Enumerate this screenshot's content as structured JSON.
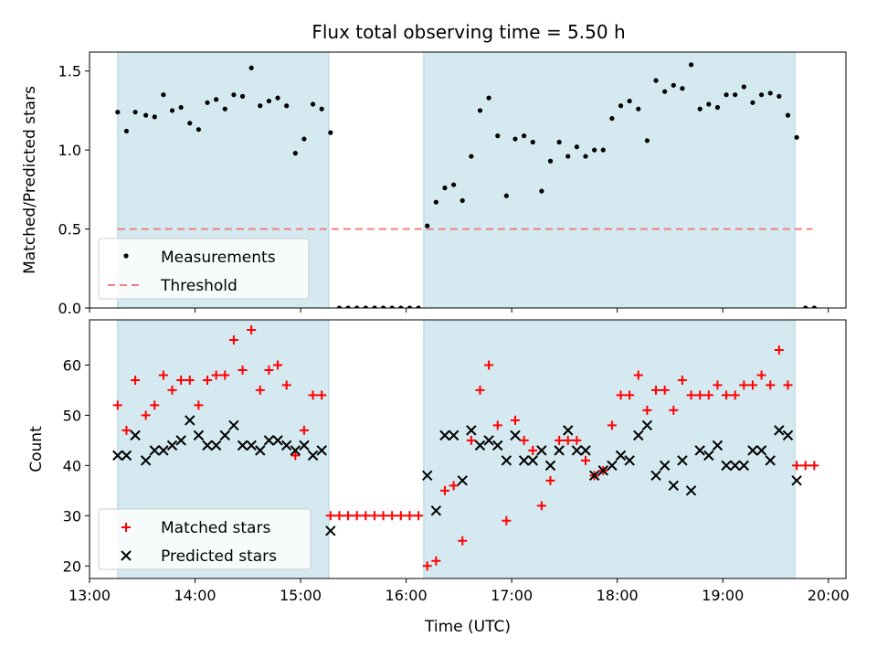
{
  "figure": {
    "title": "Flux total observing time = 5.50 h"
  },
  "chart_data": [
    {
      "type": "scatter",
      "ylabel": "Matched/Predicted stars",
      "xlabel": "",
      "xlim": [
        "13:00",
        "20:10"
      ],
      "ylim": [
        0,
        1.62
      ],
      "yticks": [
        0.0,
        0.5,
        1.0,
        1.5
      ],
      "ytick_labels": [
        "0.0",
        "0.5",
        "1.0",
        "1.5"
      ],
      "shaded_regions": [
        {
          "start": "13:16",
          "end": "15:16",
          "color": "#d4eaf0"
        },
        {
          "start": "16:10",
          "end": "19:41",
          "color": "#d4eaf0"
        }
      ],
      "threshold": {
        "value": 0.5,
        "start": "13:16",
        "end": "19:51",
        "color": "#f08080"
      },
      "legend": {
        "position": "lower-left",
        "entries": [
          {
            "label": "Measurements",
            "marker": "dot",
            "color": "#000000"
          },
          {
            "label": "Threshold",
            "marker": "dashed-line",
            "color": "#f08080"
          }
        ]
      },
      "series": [
        {
          "name": "Measurements",
          "color": "#000000",
          "points": [
            [
              "13:16",
              1.24
            ],
            [
              "13:21",
              1.12
            ],
            [
              "13:26",
              1.24
            ],
            [
              "13:32",
              1.22
            ],
            [
              "13:37",
              1.21
            ],
            [
              "13:42",
              1.35
            ],
            [
              "13:47",
              1.25
            ],
            [
              "13:52",
              1.27
            ],
            [
              "13:57",
              1.17
            ],
            [
              "14:02",
              1.13
            ],
            [
              "14:07",
              1.3
            ],
            [
              "14:12",
              1.32
            ],
            [
              "14:17",
              1.26
            ],
            [
              "14:22",
              1.35
            ],
            [
              "14:27",
              1.34
            ],
            [
              "14:32",
              1.52
            ],
            [
              "14:37",
              1.28
            ],
            [
              "14:42",
              1.31
            ],
            [
              "14:47",
              1.33
            ],
            [
              "14:52",
              1.28
            ],
            [
              "14:57",
              0.98
            ],
            [
              "15:02",
              1.07
            ],
            [
              "15:07",
              1.29
            ],
            [
              "15:12",
              1.26
            ],
            [
              "15:17",
              1.11
            ],
            [
              "15:22",
              0.0
            ],
            [
              "15:27",
              0.0
            ],
            [
              "15:32",
              0.0
            ],
            [
              "15:37",
              0.0
            ],
            [
              "15:42",
              0.0
            ],
            [
              "15:47",
              0.0
            ],
            [
              "15:52",
              0.0
            ],
            [
              "15:57",
              0.0
            ],
            [
              "16:02",
              0.0
            ],
            [
              "16:07",
              0.0
            ],
            [
              "16:12",
              0.52
            ],
            [
              "16:17",
              0.67
            ],
            [
              "16:22",
              0.76
            ],
            [
              "16:27",
              0.78
            ],
            [
              "16:32",
              0.68
            ],
            [
              "16:37",
              0.96
            ],
            [
              "16:42",
              1.25
            ],
            [
              "16:47",
              1.33
            ],
            [
              "16:52",
              1.09
            ],
            [
              "16:57",
              0.71
            ],
            [
              "17:02",
              1.07
            ],
            [
              "17:07",
              1.09
            ],
            [
              "17:12",
              1.05
            ],
            [
              "17:17",
              0.74
            ],
            [
              "17:22",
              0.93
            ],
            [
              "17:27",
              1.05
            ],
            [
              "17:32",
              0.96
            ],
            [
              "17:37",
              1.02
            ],
            [
              "17:42",
              0.96
            ],
            [
              "17:47",
              1.0
            ],
            [
              "17:52",
              1.0
            ],
            [
              "17:57",
              1.2
            ],
            [
              "18:02",
              1.28
            ],
            [
              "18:07",
              1.31
            ],
            [
              "18:12",
              1.26
            ],
            [
              "18:17",
              1.06
            ],
            [
              "18:22",
              1.44
            ],
            [
              "18:27",
              1.37
            ],
            [
              "18:32",
              1.41
            ],
            [
              "18:37",
              1.39
            ],
            [
              "18:42",
              1.54
            ],
            [
              "18:47",
              1.26
            ],
            [
              "18:52",
              1.29
            ],
            [
              "18:57",
              1.27
            ],
            [
              "19:02",
              1.35
            ],
            [
              "19:07",
              1.35
            ],
            [
              "19:12",
              1.4
            ],
            [
              "19:17",
              1.3
            ],
            [
              "19:22",
              1.35
            ],
            [
              "19:27",
              1.36
            ],
            [
              "19:32",
              1.34
            ],
            [
              "19:37",
              1.22
            ],
            [
              "19:42",
              1.08
            ],
            [
              "19:47",
              0.0
            ],
            [
              "19:52",
              0.0
            ]
          ]
        }
      ]
    },
    {
      "type": "scatter",
      "ylabel": "Count",
      "xlabel": "Time (UTC)",
      "xlim": [
        "13:00",
        "20:10"
      ],
      "ylim": [
        17.5,
        69
      ],
      "yticks": [
        20,
        30,
        40,
        50,
        60
      ],
      "ytick_labels": [
        "20",
        "30",
        "40",
        "50",
        "60"
      ],
      "xticks": [
        "13:00",
        "14:00",
        "15:00",
        "16:00",
        "17:00",
        "18:00",
        "19:00",
        "20:00"
      ],
      "xtick_labels": [
        "13:00",
        "14:00",
        "15:00",
        "16:00",
        "17:00",
        "18:00",
        "19:00",
        "20:00"
      ],
      "shaded_regions": [
        {
          "start": "13:16",
          "end": "15:16",
          "color": "#d4eaf0"
        },
        {
          "start": "16:10",
          "end": "19:41",
          "color": "#d4eaf0"
        }
      ],
      "legend": {
        "position": "lower-left",
        "entries": [
          {
            "label": "Matched stars",
            "marker": "plus",
            "color": "#ff0000"
          },
          {
            "label": "Predicted stars",
            "marker": "x",
            "color": "#000000"
          }
        ]
      },
      "series": [
        {
          "name": "Matched stars",
          "marker": "plus",
          "color": "#ff0000",
          "points": [
            [
              "13:16",
              52
            ],
            [
              "13:21",
              47
            ],
            [
              "13:26",
              57
            ],
            [
              "13:32",
              50
            ],
            [
              "13:37",
              52
            ],
            [
              "13:42",
              58
            ],
            [
              "13:47",
              55
            ],
            [
              "13:52",
              57
            ],
            [
              "13:57",
              57
            ],
            [
              "14:02",
              52
            ],
            [
              "14:07",
              57
            ],
            [
              "14:12",
              58
            ],
            [
              "14:17",
              58
            ],
            [
              "14:22",
              65
            ],
            [
              "14:27",
              59
            ],
            [
              "14:32",
              67
            ],
            [
              "14:37",
              55
            ],
            [
              "14:42",
              59
            ],
            [
              "14:47",
              60
            ],
            [
              "14:52",
              56
            ],
            [
              "14:57",
              42
            ],
            [
              "15:02",
              47
            ],
            [
              "15:07",
              54
            ],
            [
              "15:12",
              54
            ],
            [
              "15:17",
              30
            ],
            [
              "15:22",
              30
            ],
            [
              "15:27",
              30
            ],
            [
              "15:32",
              30
            ],
            [
              "15:37",
              30
            ],
            [
              "15:42",
              30
            ],
            [
              "15:47",
              30
            ],
            [
              "15:52",
              30
            ],
            [
              "15:57",
              30
            ],
            [
              "16:02",
              30
            ],
            [
              "16:07",
              30
            ],
            [
              "16:12",
              20
            ],
            [
              "16:17",
              21
            ],
            [
              "16:22",
              35
            ],
            [
              "16:27",
              36
            ],
            [
              "16:32",
              25
            ],
            [
              "16:37",
              45
            ],
            [
              "16:42",
              55
            ],
            [
              "16:47",
              60
            ],
            [
              "16:52",
              48
            ],
            [
              "16:57",
              29
            ],
            [
              "17:02",
              49
            ],
            [
              "17:07",
              45
            ],
            [
              "17:12",
              43
            ],
            [
              "17:17",
              32
            ],
            [
              "17:22",
              37
            ],
            [
              "17:27",
              45
            ],
            [
              "17:32",
              45
            ],
            [
              "17:37",
              45
            ],
            [
              "17:42",
              41
            ],
            [
              "17:47",
              38
            ],
            [
              "17:52",
              39
            ],
            [
              "17:57",
              48
            ],
            [
              "18:02",
              54
            ],
            [
              "18:07",
              54
            ],
            [
              "18:12",
              58
            ],
            [
              "18:17",
              51
            ],
            [
              "18:22",
              55
            ],
            [
              "18:27",
              55
            ],
            [
              "18:32",
              51
            ],
            [
              "18:37",
              57
            ],
            [
              "18:42",
              54
            ],
            [
              "18:47",
              54
            ],
            [
              "18:52",
              54
            ],
            [
              "18:57",
              56
            ],
            [
              "19:02",
              54
            ],
            [
              "19:07",
              54
            ],
            [
              "19:12",
              56
            ],
            [
              "19:17",
              56
            ],
            [
              "19:22",
              58
            ],
            [
              "19:27",
              56
            ],
            [
              "19:32",
              63
            ],
            [
              "19:37",
              56
            ],
            [
              "19:42",
              40
            ],
            [
              "19:47",
              40
            ],
            [
              "19:52",
              40
            ]
          ]
        },
        {
          "name": "Predicted stars",
          "marker": "x",
          "color": "#000000",
          "points": [
            [
              "13:16",
              42
            ],
            [
              "13:21",
              42
            ],
            [
              "13:26",
              46
            ],
            [
              "13:32",
              41
            ],
            [
              "13:37",
              43
            ],
            [
              "13:42",
              43
            ],
            [
              "13:47",
              44
            ],
            [
              "13:52",
              45
            ],
            [
              "13:57",
              49
            ],
            [
              "14:02",
              46
            ],
            [
              "14:07",
              44
            ],
            [
              "14:12",
              44
            ],
            [
              "14:17",
              46
            ],
            [
              "14:22",
              48
            ],
            [
              "14:27",
              44
            ],
            [
              "14:32",
              44
            ],
            [
              "14:37",
              43
            ],
            [
              "14:42",
              45
            ],
            [
              "14:47",
              45
            ],
            [
              "14:52",
              44
            ],
            [
              "14:57",
              43
            ],
            [
              "15:02",
              44
            ],
            [
              "15:07",
              42
            ],
            [
              "15:12",
              43
            ],
            [
              "15:17",
              27
            ],
            [
              "16:12",
              38
            ],
            [
              "16:17",
              31
            ],
            [
              "16:22",
              46
            ],
            [
              "16:27",
              46
            ],
            [
              "16:32",
              37
            ],
            [
              "16:37",
              47
            ],
            [
              "16:42",
              44
            ],
            [
              "16:47",
              45
            ],
            [
              "16:52",
              44
            ],
            [
              "16:57",
              41
            ],
            [
              "17:02",
              46
            ],
            [
              "17:07",
              41
            ],
            [
              "17:12",
              41
            ],
            [
              "17:17",
              43
            ],
            [
              "17:22",
              40
            ],
            [
              "17:27",
              43
            ],
            [
              "17:32",
              47
            ],
            [
              "17:37",
              43
            ],
            [
              "17:42",
              43
            ],
            [
              "17:47",
              38
            ],
            [
              "17:52",
              39
            ],
            [
              "17:57",
              40
            ],
            [
              "18:02",
              42
            ],
            [
              "18:07",
              41
            ],
            [
              "18:12",
              46
            ],
            [
              "18:17",
              48
            ],
            [
              "18:22",
              38
            ],
            [
              "18:27",
              40
            ],
            [
              "18:32",
              36
            ],
            [
              "18:37",
              41
            ],
            [
              "18:42",
              35
            ],
            [
              "18:47",
              43
            ],
            [
              "18:52",
              42
            ],
            [
              "18:57",
              44
            ],
            [
              "19:02",
              40
            ],
            [
              "19:07",
              40
            ],
            [
              "19:12",
              40
            ],
            [
              "19:17",
              43
            ],
            [
              "19:22",
              43
            ],
            [
              "19:27",
              41
            ],
            [
              "19:32",
              47
            ],
            [
              "19:37",
              46
            ],
            [
              "19:42",
              37
            ]
          ]
        }
      ]
    }
  ]
}
